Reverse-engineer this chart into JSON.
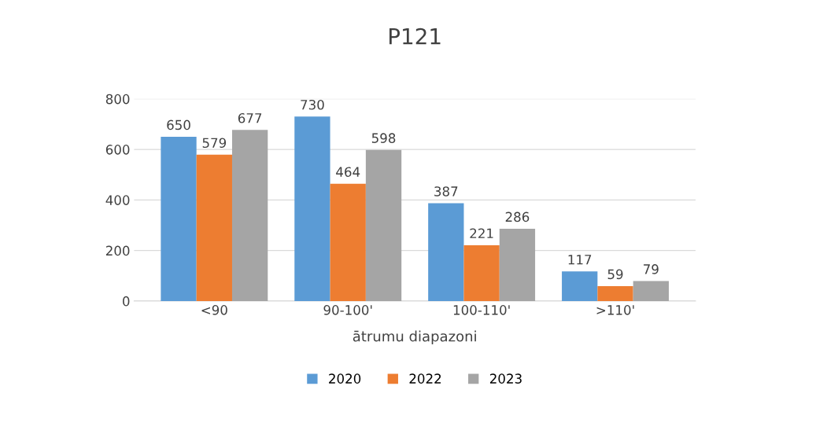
{
  "chart_data": {
    "type": "bar",
    "title": "P121",
    "xlabel": "ātrumu diapazoni",
    "categories": [
      "<90",
      "90-100'",
      "100-110'",
      ">110'"
    ],
    "series": [
      {
        "name": "2020",
        "color": "#5b9bd5",
        "values": [
          650,
          730,
          387,
          117
        ]
      },
      {
        "name": "2022",
        "color": "#ed7d31",
        "values": [
          579,
          464,
          221,
          59
        ]
      },
      {
        "name": "2023",
        "color": "#a5a5a5",
        "values": [
          677,
          598,
          286,
          79
        ]
      }
    ],
    "ylim": [
      0,
      800
    ],
    "yticks": [
      0,
      200,
      400,
      600,
      800
    ],
    "grid": "y",
    "legend": "bottom",
    "data_labels": true
  }
}
